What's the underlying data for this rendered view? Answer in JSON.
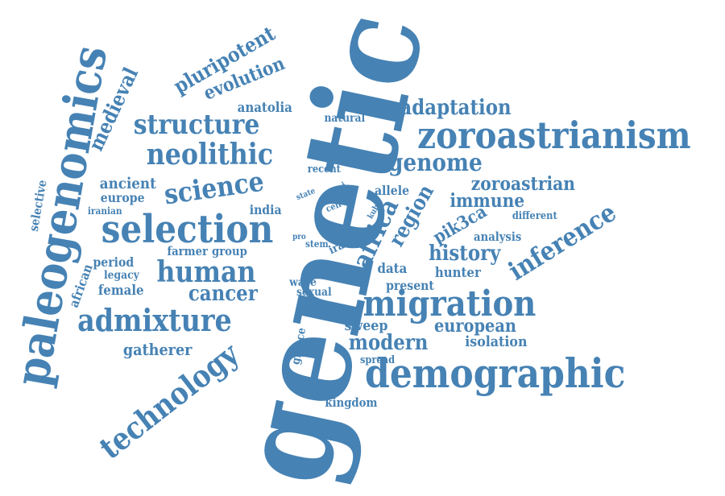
{
  "colors": {
    "word": "#4682b4",
    "background": "#ffffff"
  },
  "words": [
    "genetic",
    "paleogenomics",
    "zoroastrianism",
    "demographic",
    "migration",
    "selection",
    "neolithic",
    "admixture",
    "human",
    "structure",
    "technology",
    "science",
    "pluripotent",
    "evolution",
    "medieval",
    "africa",
    "region",
    "inference",
    "genome",
    "adaptation",
    "zoroastrian",
    "immune",
    "history",
    "modern",
    "cancer",
    "european",
    "pik3ca",
    "gatherer",
    "anatolia",
    "ancient",
    "europe",
    "india",
    "natural",
    "sweep",
    "isolation",
    "female",
    "data",
    "hunter",
    "period",
    "farmer",
    "group",
    "legacy",
    "present",
    "analysis",
    "different",
    "allele",
    "recent",
    "parsi",
    "state",
    "cell",
    "stem",
    "pro",
    "iran",
    "kuba",
    "iranian",
    "selective",
    "african",
    "wave",
    "sexual",
    "spread",
    "kingdom",
    "greece"
  ]
}
